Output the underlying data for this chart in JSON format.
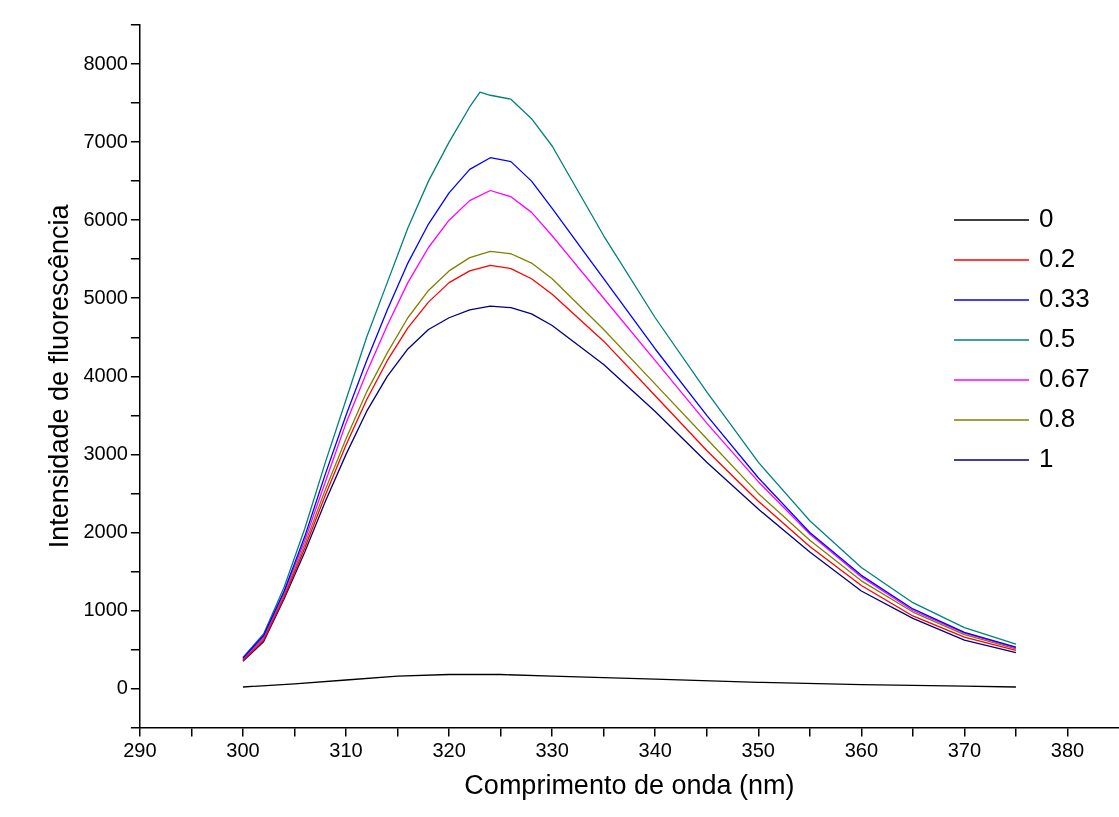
{
  "chart_data": {
    "type": "line",
    "xlabel": "Comprimento de onda (nm)",
    "ylabel": "Intensidade de fluorescência",
    "xlim": [
      290,
      385
    ],
    "ylim": [
      -500,
      8500
    ],
    "xticks": [
      290,
      {
        "value": 295,
        "label": null
      },
      300,
      {
        "value": 305,
        "label": null
      },
      310,
      {
        "value": 315,
        "label": null
      },
      320,
      {
        "value": 325,
        "label": null
      },
      330,
      {
        "value": 335,
        "label": null
      },
      340,
      {
        "value": 345,
        "label": null
      },
      350,
      {
        "value": 355,
        "label": null
      },
      360,
      {
        "value": 365,
        "label": null
      },
      370,
      {
        "value": 375,
        "label": null
      },
      380
    ],
    "yticks": [
      {
        "value": -500,
        "label": null
      },
      0,
      {
        "value": 500,
        "label": null
      },
      1000,
      {
        "value": 1500,
        "label": null
      },
      2000,
      {
        "value": 2500,
        "label": null
      },
      3000,
      {
        "value": 3500,
        "label": null
      },
      4000,
      {
        "value": 4500,
        "label": null
      },
      5000,
      {
        "value": 5500,
        "label": null
      },
      6000,
      {
        "value": 6500,
        "label": null
      },
      7000,
      {
        "value": 7500,
        "label": null
      },
      8000,
      {
        "value": 8500,
        "label": null
      }
    ],
    "grid": false,
    "legend": "right",
    "marker": "none",
    "line_style": "solid",
    "series": [
      {
        "name": "0",
        "color": "#000000",
        "x": [
          300,
          305,
          310,
          315,
          320,
          325,
          330,
          340,
          350,
          360,
          370,
          375
        ],
        "values": [
          20,
          60,
          110,
          160,
          180,
          180,
          160,
          120,
          80,
          50,
          30,
          20
        ]
      },
      {
        "name": "0.2",
        "color": "#ff0000",
        "x": [
          300,
          302,
          304,
          306,
          308,
          310,
          312,
          314,
          316,
          318,
          320,
          322,
          324,
          326,
          328,
          330,
          335,
          340,
          345,
          350,
          355,
          360,
          365,
          370,
          375
        ],
        "values": [
          360,
          620,
          1170,
          1800,
          2480,
          3120,
          3700,
          4200,
          4620,
          4950,
          5200,
          5350,
          5420,
          5380,
          5250,
          5050,
          4450,
          3750,
          3050,
          2400,
          1820,
          1320,
          930,
          660,
          490
        ]
      },
      {
        "name": "0.33",
        "color": "#0000ff",
        "x": [
          300,
          302,
          304,
          306,
          308,
          310,
          312,
          314,
          316,
          318,
          320,
          322,
          324,
          326,
          328,
          330,
          335,
          340,
          345,
          350,
          355,
          360,
          365,
          370,
          375
        ],
        "values": [
          390,
          680,
          1250,
          1950,
          2750,
          3500,
          4200,
          4850,
          5450,
          5950,
          6350,
          6650,
          6800,
          6750,
          6500,
          6150,
          5250,
          4350,
          3500,
          2700,
          2000,
          1450,
          1020,
          720,
          530
        ]
      },
      {
        "name": "0.5",
        "color": "#008080",
        "x": [
          300,
          302,
          304,
          306,
          308,
          310,
          312,
          314,
          316,
          318,
          320,
          322,
          323,
          324,
          326,
          328,
          330,
          335,
          340,
          345,
          350,
          355,
          360,
          365,
          370,
          375
        ],
        "values": [
          400,
          700,
          1300,
          2050,
          2900,
          3700,
          4500,
          5200,
          5900,
          6500,
          7000,
          7450,
          7640,
          7600,
          7550,
          7300,
          6950,
          5800,
          4750,
          3800,
          2900,
          2150,
          1550,
          1100,
          780,
          570
        ]
      },
      {
        "name": "0.67",
        "color": "#ff00ff",
        "x": [
          300,
          302,
          304,
          306,
          308,
          310,
          312,
          314,
          316,
          318,
          320,
          322,
          324,
          326,
          328,
          330,
          335,
          340,
          345,
          350,
          355,
          360,
          365,
          370,
          375
        ],
        "values": [
          380,
          660,
          1230,
          1900,
          2650,
          3400,
          4050,
          4650,
          5200,
          5650,
          6000,
          6250,
          6380,
          6300,
          6100,
          5800,
          5000,
          4200,
          3400,
          2650,
          1980,
          1430,
          1000,
          710,
          520
        ]
      },
      {
        "name": "0.8",
        "color": "#808000",
        "x": [
          300,
          302,
          304,
          306,
          308,
          310,
          312,
          314,
          316,
          318,
          320,
          322,
          324,
          326,
          328,
          330,
          335,
          340,
          345,
          350,
          355,
          360,
          365,
          370,
          375
        ],
        "values": [
          370,
          640,
          1200,
          1850,
          2550,
          3200,
          3800,
          4300,
          4750,
          5100,
          5350,
          5520,
          5600,
          5570,
          5450,
          5250,
          4600,
          3900,
          3200,
          2500,
          1900,
          1380,
          980,
          690,
          510
        ]
      },
      {
        "name": "1",
        "color": "#000080",
        "x": [
          300,
          302,
          304,
          306,
          308,
          310,
          312,
          314,
          316,
          318,
          320,
          322,
          324,
          326,
          328,
          330,
          335,
          340,
          345,
          350,
          355,
          360,
          365,
          370,
          375
        ],
        "values": [
          350,
          600,
          1150,
          1750,
          2400,
          3000,
          3550,
          4000,
          4350,
          4600,
          4750,
          4850,
          4900,
          4880,
          4800,
          4650,
          4150,
          3550,
          2900,
          2300,
          1750,
          1250,
          900,
          620,
          460
        ]
      }
    ]
  }
}
